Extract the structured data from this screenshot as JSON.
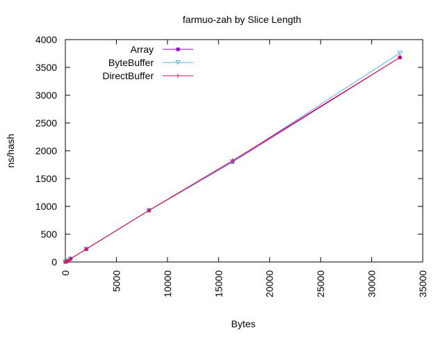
{
  "chart_data": {
    "type": "line",
    "title": "farmuo-zah by Slice Length",
    "xlabel": "Bytes",
    "ylabel": "ns/hash",
    "xlim": [
      0,
      35000
    ],
    "ylim": [
      0,
      4000
    ],
    "xticks": [
      0,
      5000,
      10000,
      15000,
      20000,
      25000,
      30000,
      35000
    ],
    "yticks": [
      0,
      500,
      1000,
      1500,
      2000,
      2500,
      3000,
      3500,
      4000
    ],
    "grid": false,
    "legend": "top-left",
    "series": [
      {
        "name": "Array",
        "color": "#9400d3",
        "marker": "square",
        "x": [
          0,
          64,
          128,
          256,
          512,
          2048,
          8192,
          16384,
          32768
        ],
        "y": [
          2,
          6,
          10,
          20,
          55,
          230,
          925,
          1800,
          3680
        ]
      },
      {
        "name": "ByteBuffer",
        "color": "#56b4e9",
        "marker": "triangle-down",
        "x": [
          0,
          64,
          128,
          256,
          512,
          2048,
          8192,
          16384,
          32768
        ],
        "y": [
          2,
          6,
          10,
          22,
          58,
          235,
          930,
          1810,
          3760
        ]
      },
      {
        "name": "DirectBuffer",
        "color": "#e0103f",
        "marker": "plus",
        "x": [
          0,
          64,
          128,
          256,
          512,
          2048,
          8192,
          16384,
          32768
        ],
        "y": [
          2,
          6,
          10,
          21,
          56,
          232,
          928,
          1825,
          3680
        ]
      }
    ]
  }
}
